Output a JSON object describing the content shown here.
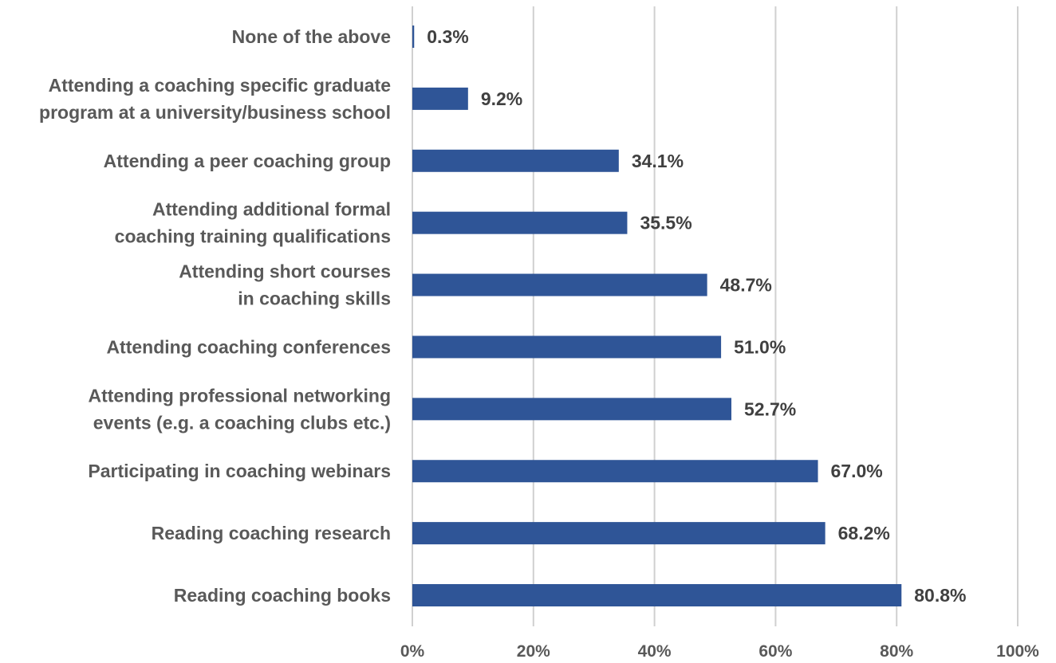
{
  "chart_data": {
    "type": "bar",
    "orientation": "horizontal",
    "categories": [
      [
        "None of the above"
      ],
      [
        "Attending a coaching specific graduate",
        "program at a university/business school"
      ],
      [
        "Attending a peer coaching group"
      ],
      [
        "Attending additional formal",
        "coaching training qualifications"
      ],
      [
        "Attending short courses",
        "in coaching skills"
      ],
      [
        "Attending coaching conferences"
      ],
      [
        "Attending professional networking",
        "events (e.g. a coaching clubs etc.)"
      ],
      [
        "Participating in coaching webinars"
      ],
      [
        "Reading coaching research"
      ],
      [
        "Reading coaching books"
      ]
    ],
    "values": [
      0.3,
      9.2,
      34.1,
      35.5,
      48.7,
      51.0,
      52.7,
      67.0,
      68.2,
      80.8
    ],
    "value_labels": [
      "0.3%",
      "9.2%",
      "34.1%",
      "35.5%",
      "48.7%",
      "51.0%",
      "52.7%",
      "67.0%",
      "68.2%",
      "80.8%"
    ],
    "xlim": [
      0,
      100
    ],
    "x_ticks": [
      "0%",
      "20%",
      "40%",
      "60%",
      "80%",
      "100%"
    ],
    "grid": "vertical",
    "bar_color": "#2f5597",
    "title": "",
    "xlabel": "",
    "ylabel": ""
  }
}
